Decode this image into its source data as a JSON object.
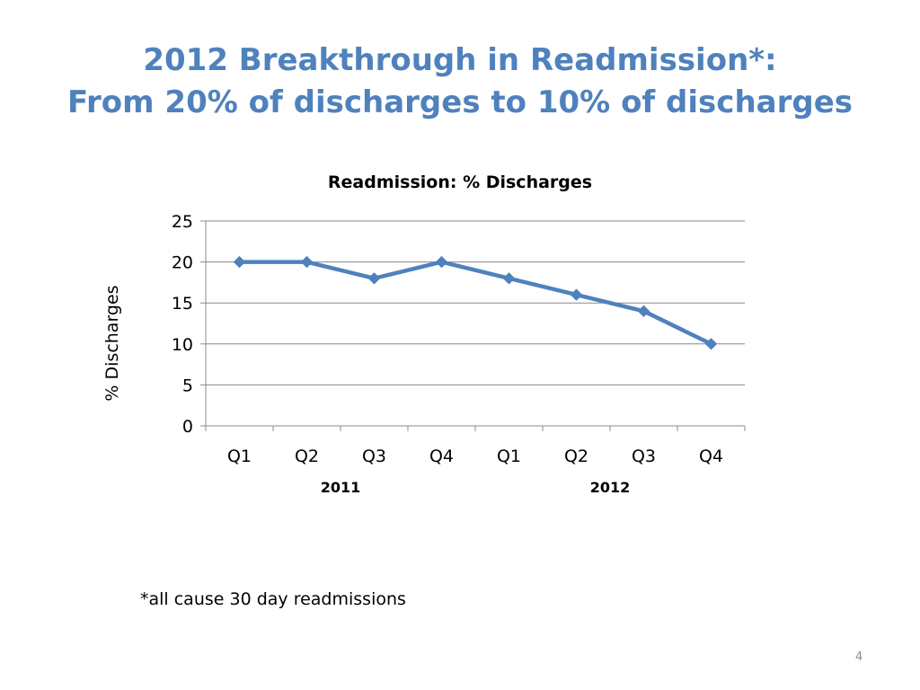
{
  "slide": {
    "title_line1": "2012 Breakthrough in Readmission*:",
    "title_line2": "From 20% of discharges to 10% of discharges",
    "footnote": "*all cause 30 day readmissions",
    "page_number": "4"
  },
  "colors": {
    "title": "#4f81bd",
    "series": "#4f81bd",
    "gridline": "#888888"
  },
  "chart_data": {
    "type": "line",
    "title": "Readmission: % Discharges",
    "xlabel": "",
    "ylabel": "% Discharges",
    "categories": [
      "Q1",
      "Q2",
      "Q3",
      "Q4",
      "Q1",
      "Q2",
      "Q3",
      "Q4"
    ],
    "category_groups": [
      {
        "label": "2011",
        "span": [
          0,
          3
        ]
      },
      {
        "label": "2012",
        "span": [
          4,
          7
        ]
      }
    ],
    "series": [
      {
        "name": "",
        "values": [
          20,
          20,
          18,
          20,
          18,
          16,
          14,
          10
        ],
        "marker": "diamond"
      }
    ],
    "ylim": [
      0,
      25
    ],
    "yticks": [
      0,
      5,
      10,
      15,
      20,
      25
    ],
    "grid": true,
    "legend": "none"
  }
}
